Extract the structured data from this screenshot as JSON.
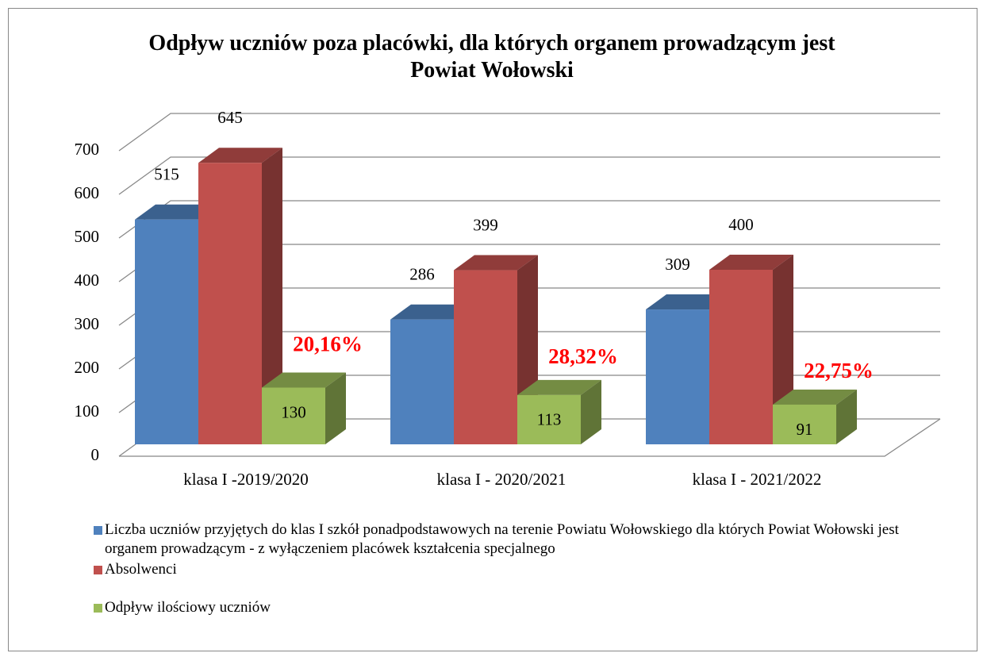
{
  "chart_data": {
    "type": "bar3d",
    "title": "Odpływ uczniów poza placówki, dla których organem prowadzącym jest Powiat Wołowski",
    "categories": [
      "klasa I -2019/2020",
      "klasa I - 2020/2021",
      "klasa I - 2021/2022"
    ],
    "series": [
      {
        "name": "Liczba uczniów przyjętych do klas I szkół ponadpodstawowych na terenie Powiatu Wołowskiego dla których Powiat Wołowski jest organem prowadzącym - z wyłączeniem placówek kształcenia specjalnego",
        "color": "#4f81bd",
        "values": [
          515,
          286,
          309
        ]
      },
      {
        "name": "Absolwenci",
        "color": "#c0504d",
        "values": [
          645,
          399,
          400
        ]
      },
      {
        "name": "Odpływ ilościowy uczniów",
        "color": "#9bbb59",
        "values": [
          130,
          113,
          91
        ]
      }
    ],
    "annotations": [
      "20,16%",
      "28,32%",
      "22,75%"
    ],
    "ylim": [
      0,
      700
    ],
    "yticks": [
      0,
      100,
      200,
      300,
      400,
      500,
      600,
      700
    ],
    "grid": true
  }
}
